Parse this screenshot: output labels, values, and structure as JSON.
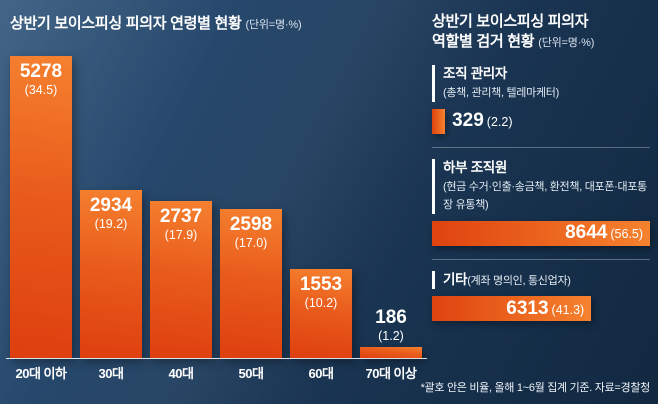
{
  "colors": {
    "accent_bar": "#e8501e",
    "background": "#1a3553",
    "text": "#ffffff"
  },
  "left_chart": {
    "title": "상반기 보이스피싱 피의자 연령별 현황",
    "unit": "(단위=명·%)"
  },
  "right_chart": {
    "title_line1": "상반기 보이스피싱 피의자",
    "title_line2": "역할별 검거 현황",
    "unit": "(단위=명·%)"
  },
  "footnote": "*괄호 안은 비율, 올해 1~6월 집계 기준. 자료=경찰청",
  "chart_data": [
    {
      "type": "bar",
      "orientation": "vertical",
      "title": "상반기 보이스피싱 피의자 연령별 현황",
      "unit_label": "(단위=명·%)",
      "categories": [
        "20대 이하",
        "30대",
        "40대",
        "50대",
        "60대",
        "70대 이상"
      ],
      "values": [
        5278,
        2934,
        2737,
        2598,
        1553,
        186
      ],
      "percentages": [
        34.5,
        19.2,
        17.9,
        17.0,
        10.2,
        1.2
      ],
      "ylim": [
        0,
        5278
      ],
      "grid": false,
      "legend": false,
      "bar_color": "#e8501e"
    },
    {
      "type": "bar",
      "orientation": "horizontal",
      "title": "상반기 보이스피싱 피의자 역할별 검거 현황",
      "unit_label": "(단위=명·%)",
      "categories": [
        "조직 관리자",
        "하부 조직원",
        "기타"
      ],
      "category_notes": [
        "(총책, 관리책, 텔레마케터)",
        "(현금 수거·인출·송금책, 환전책, 대포폰·대포통장 유통책)",
        "(계좌 명의인, 통신업자)"
      ],
      "values": [
        329,
        8644,
        6313
      ],
      "percentages": [
        2.2,
        56.5,
        41.3
      ],
      "note_inline": [
        false,
        false,
        true
      ],
      "value_inside_bar": [
        false,
        true,
        true
      ],
      "xlim": [
        0,
        8644
      ],
      "grid": false,
      "legend": false,
      "bar_color": "#e8501e"
    }
  ]
}
